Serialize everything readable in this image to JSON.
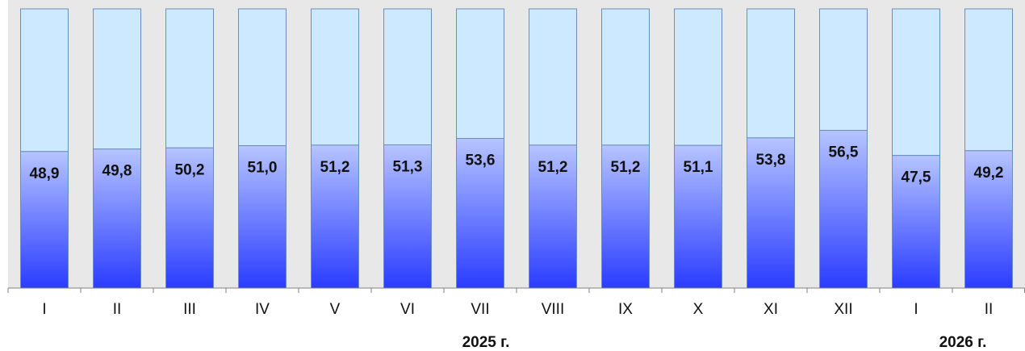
{
  "chart_data": {
    "type": "bar",
    "stacked_percent": true,
    "categories": [
      "I",
      "II",
      "III",
      "IV",
      "V",
      "VI",
      "VII",
      "VIII",
      "IX",
      "X",
      "XI",
      "XII",
      "I",
      "II"
    ],
    "values": [
      48.9,
      49.8,
      50.2,
      51.0,
      51.2,
      51.3,
      53.6,
      51.2,
      51.2,
      51.1,
      53.8,
      56.5,
      47.5,
      49.2
    ],
    "value_labels": [
      "48,9",
      "49,8",
      "50,2",
      "51,0",
      "51,2",
      "51,3",
      "53,6",
      "51,2",
      "51,2",
      "51,1",
      "53,8",
      "56,5",
      "47,5",
      "49,2"
    ],
    "ylim": [
      0,
      100
    ],
    "years": [
      "2025 г.",
      "2026 г."
    ],
    "grid": false,
    "legend": "none",
    "colors": {
      "plot_bg": "#e8e8e8",
      "bar_top": "#cde9ff",
      "bar_border": "#6a8fb8",
      "gradient_top": "#b6c4ff",
      "gradient_bottom": "#2a3cff",
      "axis": "#808080"
    }
  }
}
